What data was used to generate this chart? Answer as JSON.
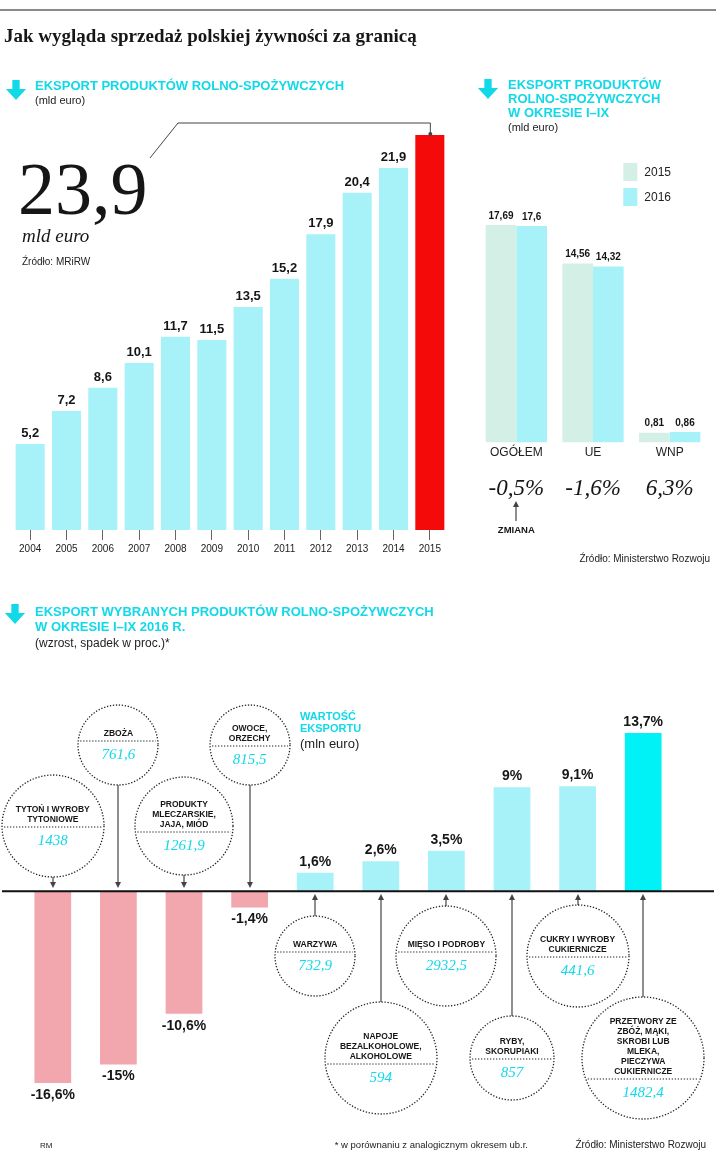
{
  "chart_data": [
    {
      "type": "bar",
      "title": "Jak wygląda sprzedaż polskiej żywności za granicą",
      "subtitle": "EKSPORT PRODUKTÓW ROLNO-SPOŻYWCZYCH",
      "ylabel": "(mld euro)",
      "categories": [
        "2004",
        "2005",
        "2006",
        "2007",
        "2008",
        "2009",
        "2010",
        "2011",
        "2012",
        "2013",
        "2014",
        "2015"
      ],
      "values": [
        5.2,
        7.2,
        8.6,
        10.1,
        11.7,
        11.5,
        13.5,
        15.2,
        17.9,
        20.4,
        21.9,
        23.9
      ],
      "colors": [
        "#a7f1f9",
        "#a7f1f9",
        "#a7f1f9",
        "#a7f1f9",
        "#a7f1f9",
        "#a7f1f9",
        "#a7f1f9",
        "#a7f1f9",
        "#a7f1f9",
        "#a7f1f9",
        "#a7f1f9",
        "#f50a0a"
      ],
      "value_labels": [
        "5,2",
        "7,2",
        "8,6",
        "10,1",
        "11,7",
        "11,5",
        "13,5",
        "15,2",
        "17,9",
        "20,4",
        "21,9",
        null
      ],
      "annotations": [
        {
          "text": "23,9",
          "x": "2015",
          "y": 23.9
        },
        "mld euro",
        "Źródło: MRiRW"
      ],
      "tick_labels": "x"
    },
    {
      "type": "bar",
      "title": "EKSPORT PRODUKTÓW ROLNO-SPOŻYWCZYCH W OKRESIE I–IX",
      "subtitle": "(mld euro)",
      "categories": [
        "OGÓŁEM",
        "UE",
        "WNP"
      ],
      "series": [
        {
          "name": "2015",
          "color": "#d4f0e6",
          "values": [
            17.69,
            14.56,
            0.81
          ],
          "value_labels": [
            "17,69",
            "14,56",
            "0,81"
          ]
        },
        {
          "name": "2016",
          "color": "#a7f1f9",
          "values": [
            17.6,
            14.32,
            0.86
          ],
          "value_labels": [
            "17,6",
            "14,32",
            "0,86"
          ]
        }
      ],
      "legend": "top right",
      "tick_labels": "x",
      "annotations": [
        "-0,5%",
        "-1,6%",
        "6,3%",
        "ZMIANA",
        "Źródło: Ministerstwo Rozwoju"
      ]
    },
    {
      "type": "bar",
      "title": "EKSPORT WYBRANYCH PRODUKTÓW ROLNO-SPOŻYWCZYCH W OKRESIE I–IX 2016 R.",
      "subtitle": "(wzrost, spadek w proc.)*",
      "categories": [
        "TYTOŃ I WYROBY TYTONIOWE",
        "ZBOŻA",
        "PRODUKTY MLECZARSKIE, JAJA, MIÓD",
        "OWOCE, ORZECHY",
        "WARZYWA",
        "NAPOJE BEZALKOHOLOWE, ALKOHOLOWE",
        "MIĘSO I PODROBY",
        "RYBY, SKORUPIAKI",
        "CUKRY I WYROBY CUKIERNICZE",
        "PRZETWORY ZE ZBÓŻ, MĄKI, SKROBI LUB MLEKA, PIECZYWA CUKIERNICZE"
      ],
      "values": [
        -16.6,
        -15,
        -10.6,
        -1.4,
        1.6,
        2.6,
        3.5,
        9,
        9.1,
        13.7
      ],
      "colors": [
        "#f2a7ae",
        "#f2a7ae",
        "#f2a7ae",
        "#f2a7ae",
        "#a7f1f9",
        "#a7f1f9",
        "#a7f1f9",
        "#a7f1f9",
        "#a7f1f9",
        "#00f2f7"
      ],
      "value_labels": [
        "-16,6%",
        "-15%",
        "-10,6%",
        "-1,4%",
        "1,6%",
        "2,6%",
        "3,5%",
        "9%",
        "9,1%",
        "13,7%"
      ],
      "tick_labels": "x",
      "annotations": [
        "1438",
        "761,6",
        "1261,9",
        "815,5",
        "732,9",
        "594",
        "2932,5",
        "857",
        "441,6",
        "1482,4",
        "WARTOŚĆ EKSPORTU",
        "(mln euro)",
        "* w porównaniu z analogicznym okresem ub.r.",
        "Źródło: Ministerstwo Rozwoju",
        "RM"
      ]
    }
  ]
}
